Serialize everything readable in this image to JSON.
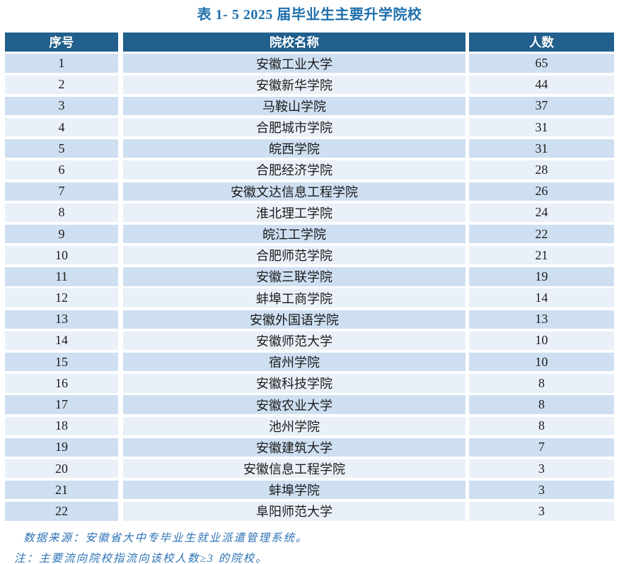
{
  "title": "表 1- 5  2025 届毕业生主要升学院校",
  "table": {
    "columns": [
      "序号",
      "院校名称",
      "人数"
    ],
    "rows": [
      [
        "1",
        "安徽工业大学",
        "65"
      ],
      [
        "2",
        "安徽新华学院",
        "44"
      ],
      [
        "3",
        "马鞍山学院",
        "37"
      ],
      [
        "4",
        "合肥城市学院",
        "31"
      ],
      [
        "5",
        "皖西学院",
        "31"
      ],
      [
        "6",
        "合肥经济学院",
        "28"
      ],
      [
        "7",
        "安徽文达信息工程学院",
        "26"
      ],
      [
        "8",
        "淮北理工学院",
        "24"
      ],
      [
        "9",
        "皖江工学院",
        "22"
      ],
      [
        "10",
        "合肥师范学院",
        "21"
      ],
      [
        "11",
        "安徽三联学院",
        "19"
      ],
      [
        "12",
        "蚌埠工商学院",
        "14"
      ],
      [
        "13",
        "安徽外国语学院",
        "13"
      ],
      [
        "14",
        "安徽师范大学",
        "10"
      ],
      [
        "15",
        "宿州学院",
        "10"
      ],
      [
        "16",
        "安徽科技学院",
        "8"
      ],
      [
        "17",
        "安徽农业大学",
        "8"
      ],
      [
        "18",
        "池州学院",
        "8"
      ],
      [
        "19",
        "安徽建筑大学",
        "7"
      ],
      [
        "20",
        "安徽信息工程学院",
        "3"
      ],
      [
        "21",
        "蚌埠学院",
        "3"
      ],
      [
        "22",
        "阜阳师范大学",
        "3"
      ]
    ]
  },
  "notes": {
    "source": "数据来源：安徽省大中专毕业生就业派遣管理系统。",
    "note": "注：主要流向院校指流向该校人数≥3 的院校。"
  },
  "colors": {
    "header_bg": "#215F8C",
    "row_dark": "#CEDFF1",
    "row_light": "#E9F0F8",
    "title_blue": "#1E6FAC",
    "note_blue": "#2E74B5"
  }
}
